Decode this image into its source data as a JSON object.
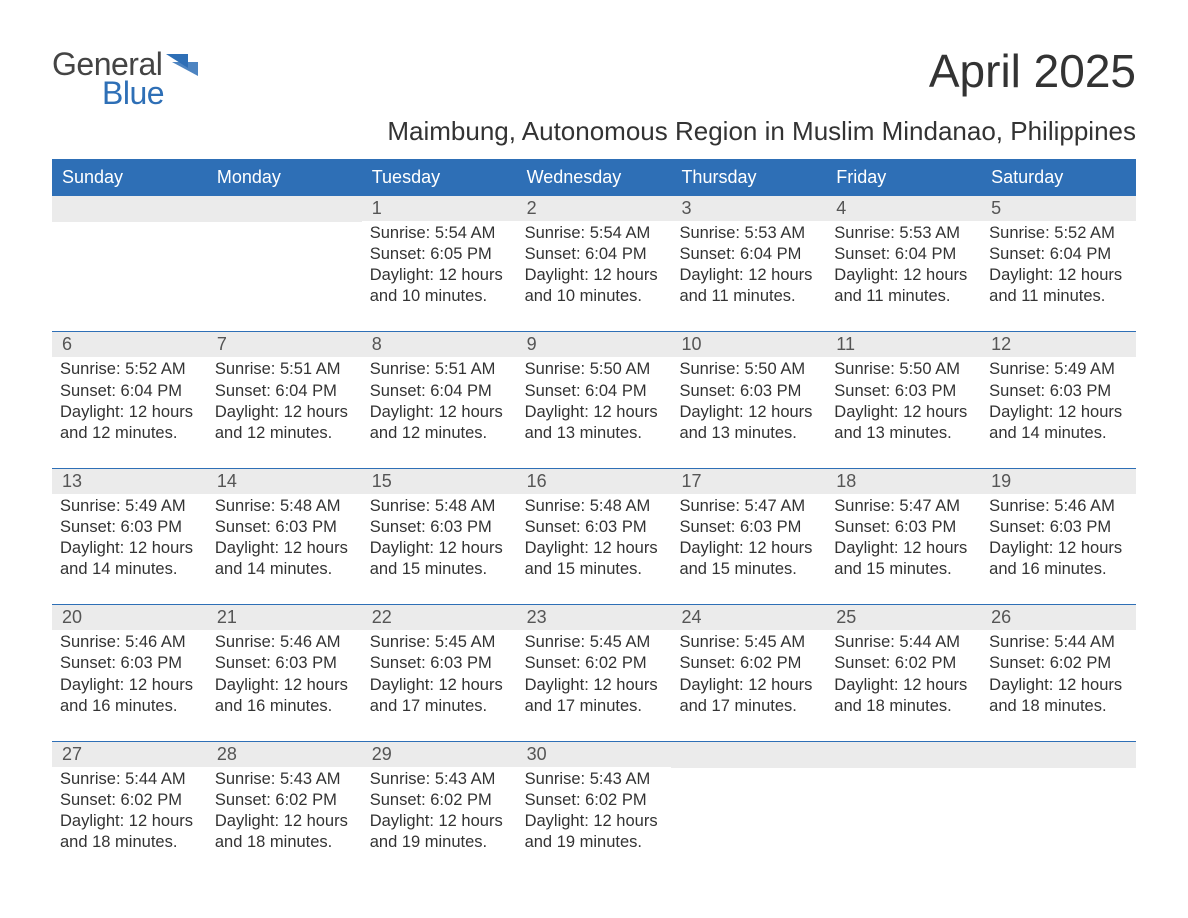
{
  "logo": {
    "general": "General",
    "blue": "Blue",
    "mark_color": "#2e6fb6"
  },
  "title": "April 2025",
  "subtitle": "Maimbung, Autonomous Region in Muslim Mindanao, Philippines",
  "colors": {
    "header_bg": "#2e6fb6",
    "header_text": "#ffffff",
    "daynum_bg": "#ebebeb",
    "body_text": "#333333",
    "week_divider": "#2e6fb6"
  },
  "columns": [
    "Sunday",
    "Monday",
    "Tuesday",
    "Wednesday",
    "Thursday",
    "Friday",
    "Saturday"
  ],
  "labels": {
    "sunrise": "Sunrise:",
    "sunset": "Sunset:",
    "daylight_prefix": "Daylight:"
  },
  "weeks": [
    [
      null,
      null,
      {
        "n": "1",
        "sunrise": "5:54 AM",
        "sunset": "6:05 PM",
        "daylight": "12 hours and 10 minutes."
      },
      {
        "n": "2",
        "sunrise": "5:54 AM",
        "sunset": "6:04 PM",
        "daylight": "12 hours and 10 minutes."
      },
      {
        "n": "3",
        "sunrise": "5:53 AM",
        "sunset": "6:04 PM",
        "daylight": "12 hours and 11 minutes."
      },
      {
        "n": "4",
        "sunrise": "5:53 AM",
        "sunset": "6:04 PM",
        "daylight": "12 hours and 11 minutes."
      },
      {
        "n": "5",
        "sunrise": "5:52 AM",
        "sunset": "6:04 PM",
        "daylight": "12 hours and 11 minutes."
      }
    ],
    [
      {
        "n": "6",
        "sunrise": "5:52 AM",
        "sunset": "6:04 PM",
        "daylight": "12 hours and 12 minutes."
      },
      {
        "n": "7",
        "sunrise": "5:51 AM",
        "sunset": "6:04 PM",
        "daylight": "12 hours and 12 minutes."
      },
      {
        "n": "8",
        "sunrise": "5:51 AM",
        "sunset": "6:04 PM",
        "daylight": "12 hours and 12 minutes."
      },
      {
        "n": "9",
        "sunrise": "5:50 AM",
        "sunset": "6:04 PM",
        "daylight": "12 hours and 13 minutes."
      },
      {
        "n": "10",
        "sunrise": "5:50 AM",
        "sunset": "6:03 PM",
        "daylight": "12 hours and 13 minutes."
      },
      {
        "n": "11",
        "sunrise": "5:50 AM",
        "sunset": "6:03 PM",
        "daylight": "12 hours and 13 minutes."
      },
      {
        "n": "12",
        "sunrise": "5:49 AM",
        "sunset": "6:03 PM",
        "daylight": "12 hours and 14 minutes."
      }
    ],
    [
      {
        "n": "13",
        "sunrise": "5:49 AM",
        "sunset": "6:03 PM",
        "daylight": "12 hours and 14 minutes."
      },
      {
        "n": "14",
        "sunrise": "5:48 AM",
        "sunset": "6:03 PM",
        "daylight": "12 hours and 14 minutes."
      },
      {
        "n": "15",
        "sunrise": "5:48 AM",
        "sunset": "6:03 PM",
        "daylight": "12 hours and 15 minutes."
      },
      {
        "n": "16",
        "sunrise": "5:48 AM",
        "sunset": "6:03 PM",
        "daylight": "12 hours and 15 minutes."
      },
      {
        "n": "17",
        "sunrise": "5:47 AM",
        "sunset": "6:03 PM",
        "daylight": "12 hours and 15 minutes."
      },
      {
        "n": "18",
        "sunrise": "5:47 AM",
        "sunset": "6:03 PM",
        "daylight": "12 hours and 15 minutes."
      },
      {
        "n": "19",
        "sunrise": "5:46 AM",
        "sunset": "6:03 PM",
        "daylight": "12 hours and 16 minutes."
      }
    ],
    [
      {
        "n": "20",
        "sunrise": "5:46 AM",
        "sunset": "6:03 PM",
        "daylight": "12 hours and 16 minutes."
      },
      {
        "n": "21",
        "sunrise": "5:46 AM",
        "sunset": "6:03 PM",
        "daylight": "12 hours and 16 minutes."
      },
      {
        "n": "22",
        "sunrise": "5:45 AM",
        "sunset": "6:03 PM",
        "daylight": "12 hours and 17 minutes."
      },
      {
        "n": "23",
        "sunrise": "5:45 AM",
        "sunset": "6:02 PM",
        "daylight": "12 hours and 17 minutes."
      },
      {
        "n": "24",
        "sunrise": "5:45 AM",
        "sunset": "6:02 PM",
        "daylight": "12 hours and 17 minutes."
      },
      {
        "n": "25",
        "sunrise": "5:44 AM",
        "sunset": "6:02 PM",
        "daylight": "12 hours and 18 minutes."
      },
      {
        "n": "26",
        "sunrise": "5:44 AM",
        "sunset": "6:02 PM",
        "daylight": "12 hours and 18 minutes."
      }
    ],
    [
      {
        "n": "27",
        "sunrise": "5:44 AM",
        "sunset": "6:02 PM",
        "daylight": "12 hours and 18 minutes."
      },
      {
        "n": "28",
        "sunrise": "5:43 AM",
        "sunset": "6:02 PM",
        "daylight": "12 hours and 18 minutes."
      },
      {
        "n": "29",
        "sunrise": "5:43 AM",
        "sunset": "6:02 PM",
        "daylight": "12 hours and 19 minutes."
      },
      {
        "n": "30",
        "sunrise": "5:43 AM",
        "sunset": "6:02 PM",
        "daylight": "12 hours and 19 minutes."
      },
      null,
      null,
      null
    ]
  ]
}
